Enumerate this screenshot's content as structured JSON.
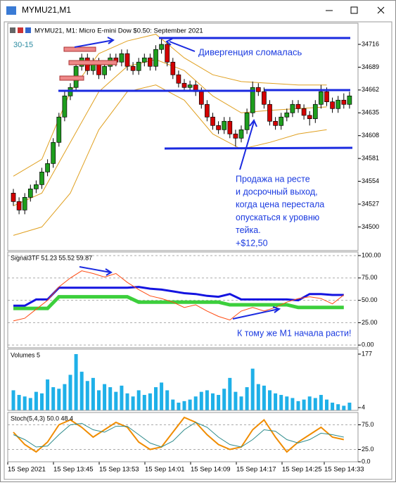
{
  "window": {
    "title": "MYMU21,M1"
  },
  "header": "MYMU21, M1:  Micro E-mini Dow $0.50: September 2021",
  "annotations": {
    "tag": "30-15",
    "divergence": "Дивергенция сломалась",
    "trade": [
      "Продажа на ресте",
      "и досрочный выход,",
      "когда цена перестала",
      "опускаться к уровню",
      "тейка.",
      "+$12,50"
    ],
    "m1": "К тому же M1 начала расти!"
  },
  "time_labels": [
    "15 Sep 2021",
    "15 Sep 13:45",
    "15 Sep 13:53",
    "15 Sep 14:01",
    "15 Sep 14:09",
    "15 Sep 14:17",
    "15 Sep 14:25",
    "15 Sep 14:33"
  ],
  "chart_data": [
    {
      "type": "candlestick",
      "up_color": "#1e9e1e",
      "down_color": "#d40000",
      "open": [
        34540,
        34530,
        34520,
        34535,
        34545,
        34550,
        34565,
        34575,
        34600,
        34630,
        34655,
        34665,
        34690,
        34700,
        34685,
        34695,
        34680,
        34690,
        34700,
        34695,
        34705,
        34690,
        34685,
        34695,
        34700,
        34690,
        34710,
        34716,
        34695,
        34680,
        34670,
        34665,
        34668,
        34660,
        34645,
        34630,
        34620,
        34615,
        34625,
        34610,
        34605,
        34615,
        34635,
        34665,
        34660,
        34645,
        34625,
        34620,
        34630,
        34635,
        34645,
        34640,
        34632,
        34628,
        34645,
        34660,
        34648,
        34640,
        34650,
        34645
      ],
      "high": [
        34545,
        34535,
        34540,
        34550,
        34555,
        34570,
        34580,
        34605,
        34635,
        34660,
        34670,
        34695,
        34705,
        34705,
        34700,
        34700,
        34695,
        34705,
        34705,
        34710,
        34710,
        34695,
        34700,
        34705,
        34705,
        34715,
        34722,
        34720,
        34700,
        34685,
        34675,
        34673,
        34673,
        34665,
        34650,
        34635,
        34625,
        34630,
        34630,
        34615,
        34620,
        34640,
        34672,
        34670,
        34665,
        34650,
        34630,
        34635,
        34640,
        34650,
        34650,
        34645,
        34637,
        34650,
        34668,
        34665,
        34653,
        34655,
        34658,
        34660
      ],
      "low": [
        34525,
        34515,
        34515,
        34530,
        34540,
        34545,
        34560,
        34570,
        34595,
        34625,
        34650,
        34660,
        34685,
        34680,
        34680,
        34675,
        34675,
        34685,
        34690,
        34690,
        34685,
        34680,
        34680,
        34690,
        34685,
        34685,
        34705,
        34690,
        34675,
        34665,
        34660,
        34660,
        34655,
        34640,
        34625,
        34615,
        34610,
        34610,
        34605,
        34595,
        34600,
        34610,
        34630,
        34655,
        34640,
        34620,
        34615,
        34615,
        34625,
        34630,
        34635,
        34627,
        34620,
        34623,
        34640,
        34643,
        34635,
        34635,
        34640,
        34640
      ],
      "close": [
        34530,
        34520,
        34535,
        34545,
        34550,
        34565,
        34575,
        34600,
        34630,
        34655,
        34665,
        34690,
        34700,
        34685,
        34695,
        34680,
        34690,
        34700,
        34695,
        34705,
        34690,
        34685,
        34695,
        34700,
        34690,
        34710,
        34716,
        34695,
        34680,
        34670,
        34665,
        34668,
        34660,
        34645,
        34630,
        34620,
        34615,
        34625,
        34610,
        34605,
        34615,
        34635,
        34665,
        34660,
        34645,
        34625,
        34620,
        34630,
        34635,
        34645,
        34640,
        34632,
        34628,
        34645,
        34660,
        34648,
        34640,
        34650,
        34645,
        34655
      ],
      "bands": [
        {
          "color": "#e0a020",
          "values": [
            34560,
            34580,
            34660,
            34705,
            34720,
            34728,
            34700,
            34680,
            34672,
            34670,
            34668,
            34668
          ]
        },
        {
          "color": "#e0a020",
          "values": [
            34525,
            34540,
            34600,
            34660,
            34690,
            34698,
            34685,
            34655,
            34635,
            34638,
            34640,
            34642
          ]
        },
        {
          "color": "#e0a020",
          "values": [
            34490,
            34500,
            34540,
            34615,
            34660,
            34668,
            34650,
            34610,
            34592,
            34600,
            34610,
            34615
          ]
        }
      ],
      "ylim": [
        34472,
        34741
      ],
      "yticks": [
        34716,
        34689,
        34662,
        34635,
        34608,
        34581,
        34554,
        34527,
        34500
      ]
    },
    {
      "type": "line",
      "title": "Signal3TF 51.23 55.52 59.87",
      "series": [
        {
          "color": "#3ccf3c",
          "width": 5,
          "values": [
            41,
            41,
            41,
            41,
            54,
            54,
            54,
            54,
            54,
            54,
            54,
            48,
            48,
            48,
            48,
            48,
            48,
            48,
            48,
            45,
            45,
            45,
            45,
            45,
            45,
            42,
            42,
            42,
            42,
            42
          ]
        },
        {
          "color": "#1414e0",
          "width": 3,
          "values": [
            44,
            44,
            51,
            51,
            64,
            64,
            64,
            64,
            64,
            64,
            64,
            65,
            63,
            62,
            60,
            58,
            57,
            55,
            54,
            57,
            51,
            51,
            51,
            51,
            51,
            50,
            57,
            57,
            56,
            56
          ]
        },
        {
          "color": "#ff4a10",
          "width": 1,
          "values": [
            27,
            30,
            40,
            50,
            65,
            75,
            83,
            80,
            76,
            80,
            70,
            62,
            55,
            52,
            48,
            42,
            45,
            38,
            32,
            28,
            38,
            42,
            38,
            42,
            48,
            52,
            54,
            52,
            46,
            56
          ]
        }
      ],
      "ylim": [
        -3,
        104
      ],
      "yticks": [
        {
          "value": 100,
          "label": "100.00"
        },
        {
          "value": 75,
          "label": "75.00"
        },
        {
          "value": 50,
          "label": "50.00"
        },
        {
          "value": 25,
          "label": "25.00"
        },
        {
          "value": 0,
          "label": "0.00"
        }
      ],
      "grid": true
    },
    {
      "type": "bar",
      "title": "Volumes 5",
      "color": "#1fb0e8",
      "values": [
        60,
        45,
        40,
        35,
        55,
        50,
        95,
        70,
        65,
        80,
        110,
        177,
        120,
        90,
        100,
        60,
        80,
        70,
        55,
        75,
        50,
        40,
        60,
        45,
        50,
        70,
        85,
        60,
        30,
        20,
        25,
        30,
        40,
        55,
        60,
        50,
        45,
        65,
        100,
        55,
        40,
        70,
        130,
        80,
        75,
        60,
        50,
        45,
        40,
        35,
        25,
        30,
        40,
        35,
        45,
        30,
        20,
        15,
        10,
        20
      ],
      "ylim": [
        -5,
        193
      ],
      "yticks": [
        177,
        4
      ],
      "grid": false
    },
    {
      "type": "line",
      "title": "Stoch(5,4,3) 50.0 48.4",
      "series": [
        {
          "color": "#f08c00",
          "width": 2,
          "values": [
            60,
            35,
            20,
            40,
            75,
            85,
            70,
            50,
            65,
            80,
            70,
            40,
            25,
            30,
            60,
            90,
            80,
            55,
            35,
            25,
            30,
            65,
            85,
            50,
            20,
            40,
            55,
            70,
            50,
            45
          ]
        },
        {
          "color": "#2e8b8b",
          "width": 1,
          "values": [
            55,
            45,
            30,
            32,
            55,
            75,
            78,
            65,
            60,
            72,
            72,
            55,
            38,
            30,
            42,
            65,
            80,
            70,
            50,
            35,
            30,
            45,
            65,
            62,
            45,
            38,
            45,
            58,
            55,
            50
          ]
        }
      ],
      "ylim": [
        0,
        100
      ],
      "yticks": [
        {
          "value": 75,
          "label": "75.0"
        },
        {
          "value": 25,
          "label": "25.0"
        },
        {
          "value": 0,
          "label": "0.0"
        }
      ],
      "grid": true
    }
  ]
}
